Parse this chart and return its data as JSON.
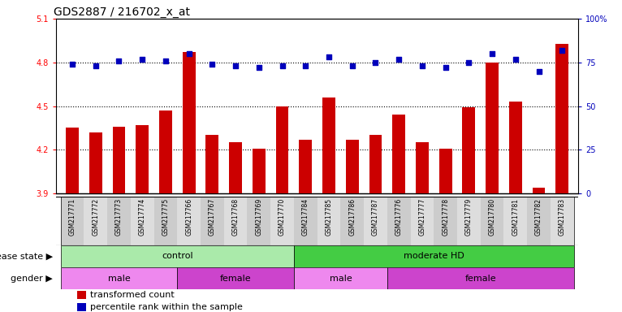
{
  "title": "GDS2887 / 216702_x_at",
  "samples": [
    "GSM217771",
    "GSM217772",
    "GSM217773",
    "GSM217774",
    "GSM217775",
    "GSM217766",
    "GSM217767",
    "GSM217768",
    "GSM217769",
    "GSM217770",
    "GSM217784",
    "GSM217785",
    "GSM217786",
    "GSM217787",
    "GSM217776",
    "GSM217777",
    "GSM217778",
    "GSM217779",
    "GSM217780",
    "GSM217781",
    "GSM217782",
    "GSM217783"
  ],
  "bar_values": [
    4.35,
    4.32,
    4.36,
    4.37,
    4.47,
    4.87,
    4.3,
    4.25,
    4.21,
    4.5,
    4.27,
    4.56,
    4.27,
    4.3,
    4.44,
    4.25,
    4.21,
    4.49,
    4.8,
    4.53,
    3.94,
    4.93
  ],
  "percentile_values": [
    74,
    73,
    76,
    77,
    76,
    80,
    74,
    73,
    72,
    73,
    73,
    78,
    73,
    75,
    77,
    73,
    72,
    75,
    80,
    77,
    70,
    82
  ],
  "ylim": [
    3.9,
    5.1
  ],
  "yticks": [
    3.9,
    4.2,
    4.5,
    4.8,
    5.1
  ],
  "right_yticks": [
    0,
    25,
    50,
    75,
    100
  ],
  "right_ytick_labels": [
    "0",
    "25",
    "50",
    "75",
    "100%"
  ],
  "bar_color": "#CC0000",
  "dot_color": "#0000BB",
  "background_color": "white",
  "disease_state_groups": [
    {
      "label": "control",
      "start": 0,
      "end": 10,
      "color": "#AAEAAA"
    },
    {
      "label": "moderate HD",
      "start": 10,
      "end": 22,
      "color": "#44CC44"
    }
  ],
  "gender_groups": [
    {
      "label": "male",
      "start": 0,
      "end": 5,
      "color": "#EE88EE"
    },
    {
      "label": "female",
      "start": 5,
      "end": 10,
      "color": "#CC44CC"
    },
    {
      "label": "male",
      "start": 10,
      "end": 14,
      "color": "#EE88EE"
    },
    {
      "label": "female",
      "start": 14,
      "end": 22,
      "color": "#CC44CC"
    }
  ],
  "legend_items": [
    {
      "label": "transformed count",
      "color": "#CC0000"
    },
    {
      "label": "percentile rank within the sample",
      "color": "#0000BB"
    }
  ],
  "bar_width": 0.55,
  "dot_size": 18,
  "main_fontsize": 7,
  "label_fontsize": 8,
  "title_fontsize": 10
}
